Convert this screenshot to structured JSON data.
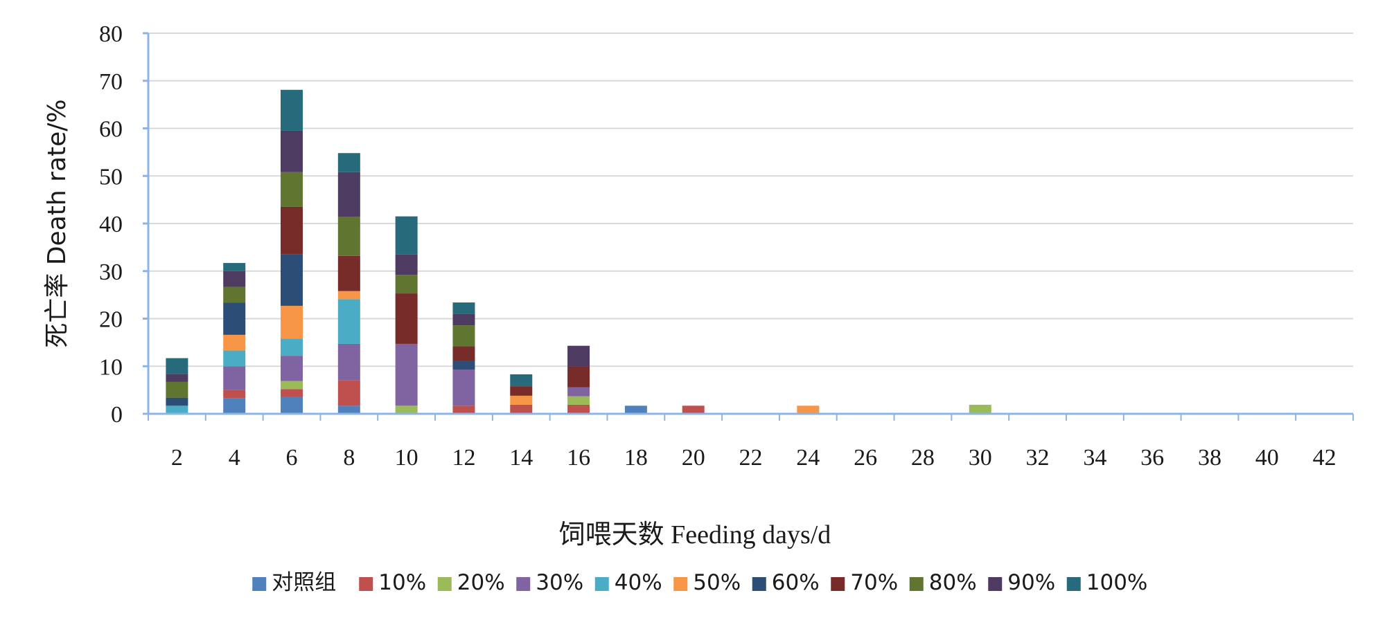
{
  "chart_data": {
    "type": "bar",
    "stacked": true,
    "title": "",
    "xlabel": "饲喂天数 Feeding days/d",
    "ylabel": "死亡率 Death rate/%",
    "ylim": [
      0,
      80
    ],
    "yticks": [
      0,
      10,
      20,
      30,
      40,
      50,
      60,
      70,
      80
    ],
    "grid": true,
    "legend_position": "bottom",
    "categories": [
      "2",
      "4",
      "6",
      "8",
      "10",
      "12",
      "14",
      "16",
      "18",
      "20",
      "22",
      "24",
      "26",
      "28",
      "30",
      "32",
      "34",
      "36",
      "38",
      "40",
      "42"
    ],
    "series": [
      {
        "name": "对照组",
        "color": "#4f81bd",
        "values": [
          0,
          3.3,
          3.5,
          1.7,
          0,
          0,
          0,
          0,
          1.7,
          0,
          0,
          0,
          0,
          0,
          0,
          0,
          0,
          0,
          0,
          0,
          0
        ]
      },
      {
        "name": "10%",
        "color": "#c0504d",
        "values": [
          0,
          1.7,
          1.7,
          5.3,
          0,
          1.7,
          1.9,
          1.9,
          0,
          1.7,
          0,
          0,
          0,
          0,
          0,
          0,
          0,
          0,
          0,
          0,
          0
        ]
      },
      {
        "name": "20%",
        "color": "#9bbb59",
        "values": [
          0,
          0,
          1.7,
          0,
          1.7,
          0,
          0,
          1.8,
          0,
          0,
          0,
          0,
          0,
          0,
          1.9,
          0,
          0,
          0,
          0,
          0,
          0
        ]
      },
      {
        "name": "30%",
        "color": "#8064a2",
        "values": [
          0,
          5.0,
          5.3,
          7.7,
          13.0,
          7.6,
          0,
          1.9,
          0,
          0,
          0,
          0,
          0,
          0,
          0,
          0,
          0,
          0,
          0,
          0,
          0
        ]
      },
      {
        "name": "40%",
        "color": "#4bacc6",
        "values": [
          1.7,
          3.3,
          3.6,
          9.4,
          0,
          0,
          0,
          0,
          0,
          0,
          0,
          0,
          0,
          0,
          0,
          0,
          0,
          0,
          0,
          0,
          0
        ]
      },
      {
        "name": "50%",
        "color": "#f79646",
        "values": [
          0,
          3.3,
          6.9,
          1.7,
          0,
          0,
          1.9,
          0,
          0,
          0,
          0,
          1.7,
          0,
          0,
          0,
          0,
          0,
          0,
          0,
          0,
          0
        ]
      },
      {
        "name": "60%",
        "color": "#2c4d75",
        "values": [
          1.7,
          6.8,
          10.8,
          0,
          0,
          1.9,
          0,
          0,
          0,
          0,
          0,
          0,
          0,
          0,
          0,
          0,
          0,
          0,
          0,
          0,
          0
        ]
      },
      {
        "name": "70%",
        "color": "#772c2a",
        "values": [
          0,
          0,
          10.0,
          7.4,
          10.6,
          3.0,
          2.0,
          4.3,
          0,
          0,
          0,
          0,
          0,
          0,
          0,
          0,
          0,
          0,
          0,
          0,
          0
        ]
      },
      {
        "name": "80%",
        "color": "#5f7530",
        "values": [
          3.3,
          3.3,
          7.3,
          8.2,
          3.9,
          4.4,
          0,
          0,
          0,
          0,
          0,
          0,
          0,
          0,
          0,
          0,
          0,
          0,
          0,
          0,
          0
        ]
      },
      {
        "name": "90%",
        "color": "#4d3b62",
        "values": [
          1.7,
          3.3,
          8.7,
          9.4,
          4.3,
          2.4,
          0,
          4.4,
          0,
          0,
          0,
          0,
          0,
          0,
          0,
          0,
          0,
          0,
          0,
          0,
          0
        ]
      },
      {
        "name": "100%",
        "color": "#276a7c",
        "values": [
          3.3,
          1.7,
          8.6,
          4.0,
          8.0,
          2.4,
          2.5,
          0,
          0,
          0,
          0,
          0,
          0,
          0,
          0,
          0,
          0,
          0,
          0,
          0,
          0
        ]
      }
    ]
  },
  "colors": {
    "grid": "#d9d9d9",
    "axis": "#8eb4e3",
    "text": "#1a1a1a"
  }
}
